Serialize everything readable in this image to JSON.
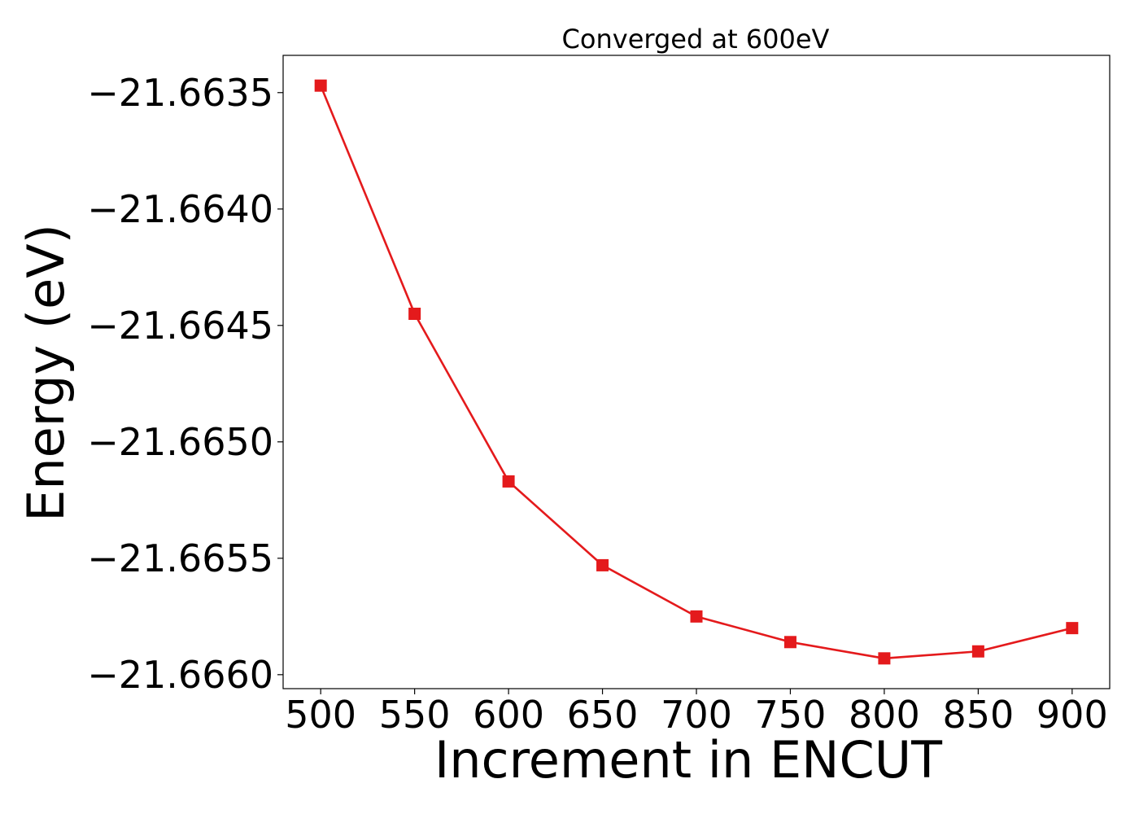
{
  "chart_data": {
    "type": "line",
    "title": "Converged at 600eV",
    "xlabel": "Increment in ENCUT",
    "ylabel": "Energy (eV)",
    "x": [
      500,
      550,
      600,
      650,
      700,
      750,
      800,
      850,
      900
    ],
    "series": [
      {
        "values": [
          -21.66347,
          -21.66445,
          -21.66517,
          -21.66553,
          -21.66575,
          -21.66586,
          -21.66593,
          -21.6659,
          -21.6658
        ],
        "color": "#e41a1c",
        "marker": "square"
      }
    ],
    "xticks": [
      500,
      550,
      600,
      650,
      700,
      750,
      800,
      850,
      900
    ],
    "xtick_labels": [
      "500",
      "550",
      "600",
      "650",
      "700",
      "750",
      "800",
      "850",
      "900"
    ],
    "yticks": [
      -21.6635,
      -21.664,
      -21.6645,
      -21.665,
      -21.6655,
      -21.666
    ],
    "ytick_labels": [
      "−21.6635",
      "−21.6640",
      "−21.6645",
      "−21.6650",
      "−21.6655",
      "−21.6660"
    ],
    "xlim": [
      480,
      920
    ],
    "ylim": [
      -21.66606,
      -21.66334
    ],
    "grid": false,
    "legend": "none"
  }
}
